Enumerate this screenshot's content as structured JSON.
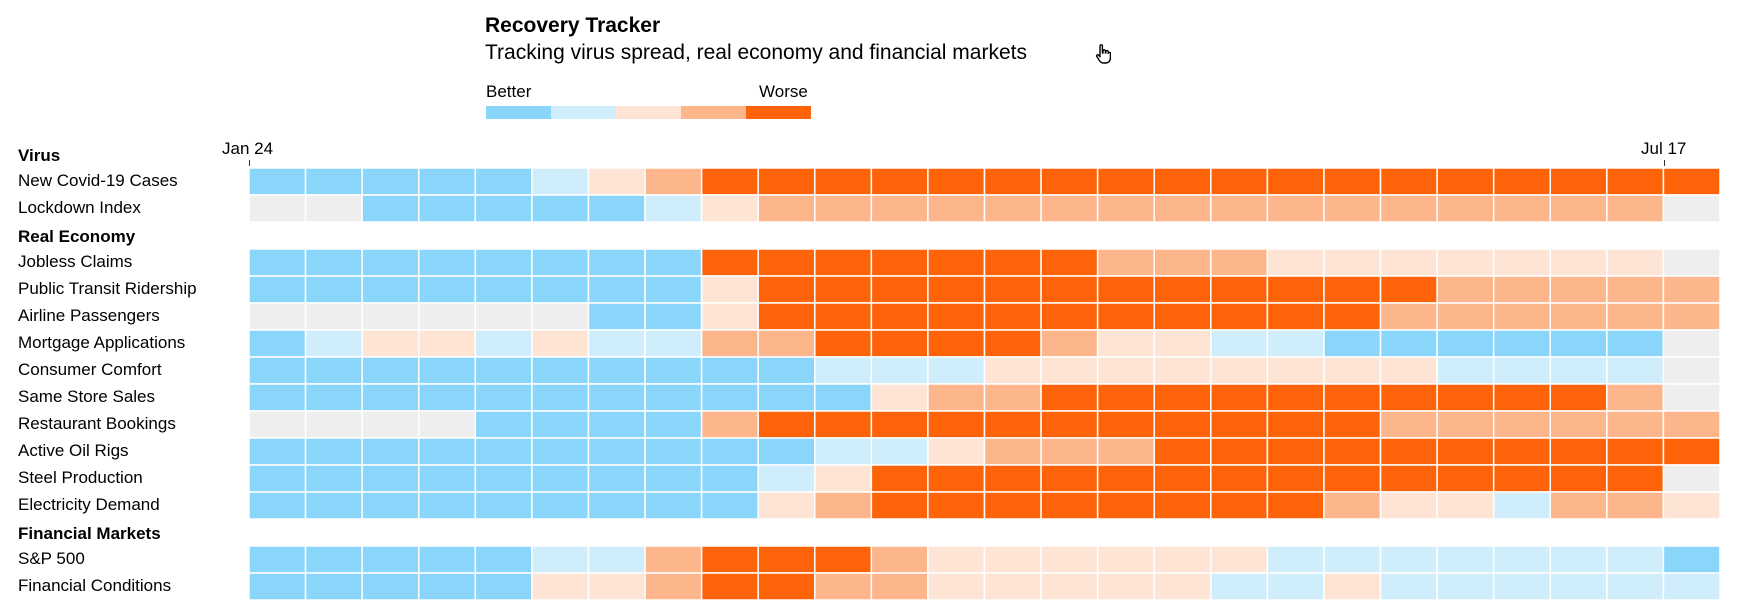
{
  "chart_data": {
    "type": "heatmap",
    "title": "Recovery Tracker",
    "subtitle": "Tracking virus spread, real economy and financial markets",
    "legend": {
      "low_label": "Better",
      "high_label": "Worse",
      "scale": [
        1,
        2,
        3,
        4,
        5
      ],
      "colors": {
        "0": "#eeeeee",
        "1": "#8ad6fb",
        "2": "#cfedfb",
        "3": "#fde4d4",
        "4": "#fdb58b",
        "5": "#fe6309"
      }
    },
    "x_start_label": "Jan 24",
    "x_end_label": "Jul 17",
    "x_periods": 26,
    "sections": [
      {
        "name": "Virus",
        "rows": [
          {
            "label": "New Covid-19 Cases",
            "values": [
              1,
              1,
              1,
              1,
              1,
              2,
              3,
              4,
              5,
              5,
              5,
              5,
              5,
              5,
              5,
              5,
              5,
              5,
              5,
              5,
              5,
              5,
              5,
              5,
              5,
              5
            ]
          },
          {
            "label": "Lockdown Index",
            "values": [
              0,
              0,
              1,
              1,
              1,
              1,
              1,
              2,
              3,
              4,
              4,
              4,
              4,
              4,
              4,
              4,
              4,
              4,
              4,
              4,
              4,
              4,
              4,
              4,
              4,
              0
            ]
          }
        ]
      },
      {
        "name": "Real Economy",
        "rows": [
          {
            "label": "Jobless Claims",
            "values": [
              1,
              1,
              1,
              1,
              1,
              1,
              1,
              1,
              5,
              5,
              5,
              5,
              5,
              5,
              5,
              4,
              4,
              4,
              3,
              3,
              3,
              3,
              3,
              3,
              3,
              0
            ]
          },
          {
            "label": "Public Transit Ridership",
            "values": [
              1,
              1,
              1,
              1,
              1,
              1,
              1,
              1,
              3,
              5,
              5,
              5,
              5,
              5,
              5,
              5,
              5,
              5,
              5,
              5,
              5,
              4,
              4,
              4,
              4,
              4
            ]
          },
          {
            "label": "Airline Passengers",
            "values": [
              0,
              0,
              0,
              0,
              0,
              0,
              1,
              1,
              3,
              5,
              5,
              5,
              5,
              5,
              5,
              5,
              5,
              5,
              5,
              5,
              4,
              4,
              4,
              4,
              4,
              4
            ]
          },
          {
            "label": "Mortgage Applications",
            "values": [
              1,
              2,
              3,
              3,
              2,
              3,
              2,
              2,
              4,
              4,
              5,
              5,
              5,
              5,
              4,
              3,
              3,
              2,
              2,
              1,
              1,
              1,
              1,
              1,
              1,
              0
            ]
          },
          {
            "label": "Consumer Comfort",
            "values": [
              1,
              1,
              1,
              1,
              1,
              1,
              1,
              1,
              1,
              1,
              2,
              2,
              2,
              3,
              3,
              3,
              3,
              3,
              3,
              3,
              3,
              2,
              2,
              2,
              2,
              0
            ]
          },
          {
            "label": "Same Store Sales",
            "values": [
              1,
              1,
              1,
              1,
              1,
              1,
              1,
              1,
              1,
              1,
              1,
              3,
              4,
              4,
              5,
              5,
              5,
              5,
              5,
              5,
              5,
              5,
              5,
              5,
              4,
              0
            ]
          },
          {
            "label": "Restaurant Bookings",
            "values": [
              0,
              0,
              0,
              0,
              1,
              1,
              1,
              1,
              4,
              5,
              5,
              5,
              5,
              5,
              5,
              5,
              5,
              5,
              5,
              5,
              4,
              4,
              4,
              4,
              4,
              4
            ]
          },
          {
            "label": "Active Oil Rigs",
            "values": [
              1,
              1,
              1,
              1,
              1,
              1,
              1,
              1,
              1,
              1,
              2,
              2,
              3,
              4,
              4,
              4,
              5,
              5,
              5,
              5,
              5,
              5,
              5,
              5,
              5,
              5
            ]
          },
          {
            "label": "Steel Production",
            "values": [
              1,
              1,
              1,
              1,
              1,
              1,
              1,
              1,
              1,
              2,
              3,
              5,
              5,
              5,
              5,
              5,
              5,
              5,
              5,
              5,
              5,
              5,
              5,
              5,
              5,
              0
            ]
          },
          {
            "label": "Electricity Demand",
            "values": [
              1,
              1,
              1,
              1,
              1,
              1,
              1,
              1,
              1,
              3,
              4,
              5,
              5,
              5,
              5,
              5,
              5,
              5,
              5,
              4,
              3,
              3,
              2,
              4,
              4,
              3
            ]
          }
        ]
      },
      {
        "name": "Financial Markets",
        "rows": [
          {
            "label": "S&P 500",
            "values": [
              1,
              1,
              1,
              1,
              1,
              2,
              2,
              4,
              5,
              5,
              5,
              4,
              3,
              3,
              3,
              3,
              3,
              3,
              2,
              2,
              2,
              2,
              2,
              2,
              2,
              1
            ]
          },
          {
            "label": "Financial Conditions",
            "values": [
              1,
              1,
              1,
              1,
              1,
              3,
              3,
              4,
              5,
              5,
              4,
              4,
              3,
              3,
              3,
              3,
              3,
              2,
              2,
              3,
              2,
              2,
              2,
              2,
              2,
              2
            ]
          }
        ]
      }
    ]
  }
}
